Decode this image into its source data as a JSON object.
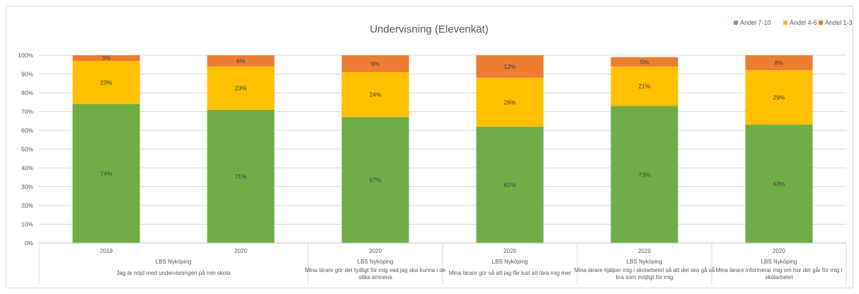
{
  "chart_data": {
    "type": "bar",
    "stacked": true,
    "title": "Undervisning (Elevenkät)",
    "legend_position": "top-right",
    "grid": true,
    "ylim": [
      0,
      100
    ],
    "y_ticks": [
      "0%",
      "10%",
      "20%",
      "30%",
      "40%",
      "50%",
      "60%",
      "70%",
      "80%",
      "90%",
      "100%"
    ],
    "categories": [
      {
        "year": "2019",
        "school": "LBS Nyköping",
        "question": "Jag är nöjd med undervisningen på min skola"
      },
      {
        "year": "2020",
        "school": "LBS Nyköping",
        "question": "Jag är nöjd med undervisningen på min skola"
      },
      {
        "year": "2020",
        "school": "LBS Nyköping",
        "question": "Mina lärare gör det tydligt för mig vad jag ska kunna i de olika ämnena"
      },
      {
        "year": "2020",
        "school": "LBS Nyköping",
        "question": "Mina lärare gör så att jag får lust att lära mig mer"
      },
      {
        "year": "2020",
        "school": "LBS Nyköping",
        "question": "Mina lärare hjälper mig i skolarbetet så att det ska gå så bra som möjligt för mig"
      },
      {
        "year": "2020",
        "school": "LBS Nyköping",
        "question": "Mina lärare informerar mig om hur det går för mig i skolarbetet"
      }
    ],
    "groups": [
      {
        "school": "LBS Nyköping",
        "question": "Jag är nöjd med undervisningen på min skola",
        "question_lines": [
          "Jag är nöjd med undervisningen på min skola"
        ],
        "bars": [
          0,
          1
        ]
      },
      {
        "school": "LBS Nyköping",
        "question": "Mina lärare gör det tydligt för mig vad jag ska kunna i de olika ämnena",
        "question_lines": [
          "Mina lärare gör det tydligt för mig vad jag ska kunna i de",
          "olika ämnena"
        ],
        "bars": [
          2
        ]
      },
      {
        "school": "LBS Nyköping",
        "question": "Mina lärare gör så att jag får lust att lära mig mer",
        "question_lines": [
          "Mina lärare gör så att jag får lust att lära mig mer"
        ],
        "bars": [
          3
        ]
      },
      {
        "school": "LBS Nyköping",
        "question": "Mina lärare hjälper mig i skolarbetet så att det ska gå så bra som möjligt för mig",
        "question_lines": [
          "Mina lärare hjälper mig i skolarbetet så att det ska gå så",
          "bra som möjligt för mig"
        ],
        "bars": [
          4
        ]
      },
      {
        "school": "LBS Nyköping",
        "question": "Mina lärare informerar mig om hur det går för mig i skolarbetet",
        "question_lines": [
          "Mina lärare informerar mig om hur det går för mig i",
          "skolarbetet"
        ],
        "bars": [
          5
        ]
      }
    ],
    "series": [
      {
        "name": "Andel 7-10",
        "color": "#70ad47",
        "values": [
          74,
          71,
          67,
          62,
          73,
          63
        ],
        "labels": [
          "74%",
          "71%",
          "67%",
          "62%",
          "73%",
          "63%"
        ]
      },
      {
        "name": "Andel 4-6",
        "color": "#ffc000",
        "values": [
          23,
          23,
          24,
          26,
          21,
          29
        ],
        "labels": [
          "23%",
          "23%",
          "24%",
          "26%",
          "21%",
          "29%"
        ]
      },
      {
        "name": "Andel 1-3",
        "color": "#ed7d31",
        "values": [
          3,
          6,
          9,
          12,
          5,
          8
        ],
        "labels": [
          "3%",
          "6%",
          "9%",
          "12%",
          "5%",
          "8%"
        ]
      }
    ]
  }
}
